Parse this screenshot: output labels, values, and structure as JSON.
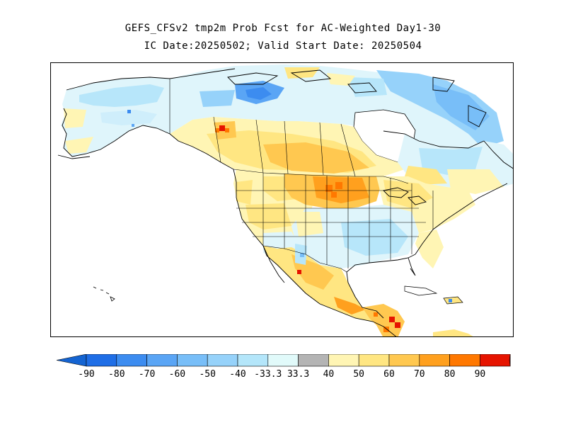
{
  "title_line1": "GEFS_CFSv2 tmp2m Prob Fcst for AC-Weighted Day1-30",
  "title_line2": "IC Date:20250502; Valid Start Date: 20250504",
  "map": {
    "region": "North America",
    "field": "tmp2m probability forecast"
  },
  "colorbar": {
    "bins": [
      {
        "label": "-90",
        "color": "#1f6ee6"
      },
      {
        "label": "-80",
        "color": "#3c8cf0"
      },
      {
        "label": "-70",
        "color": "#5aa5f5"
      },
      {
        "label": "-60",
        "color": "#78bef8"
      },
      {
        "label": "-50",
        "color": "#96d2fa"
      },
      {
        "label": "-40",
        "color": "#b4e6fa"
      },
      {
        "label": "-33.3",
        "color": "#e1fafa"
      },
      {
        "label": "33.3",
        "color": "#b4b4b4"
      },
      {
        "label": "40",
        "color": "#fff5b4"
      },
      {
        "label": "50",
        "color": "#ffe682"
      },
      {
        "label": "60",
        "color": "#ffc850"
      },
      {
        "label": "70",
        "color": "#ffa01e"
      },
      {
        "label": "80",
        "color": "#ff7800"
      },
      {
        "label": "90",
        "color": "#e61400"
      }
    ],
    "left_arrow_color": "#1464d2",
    "right_arrow_color": "#aa0000"
  }
}
